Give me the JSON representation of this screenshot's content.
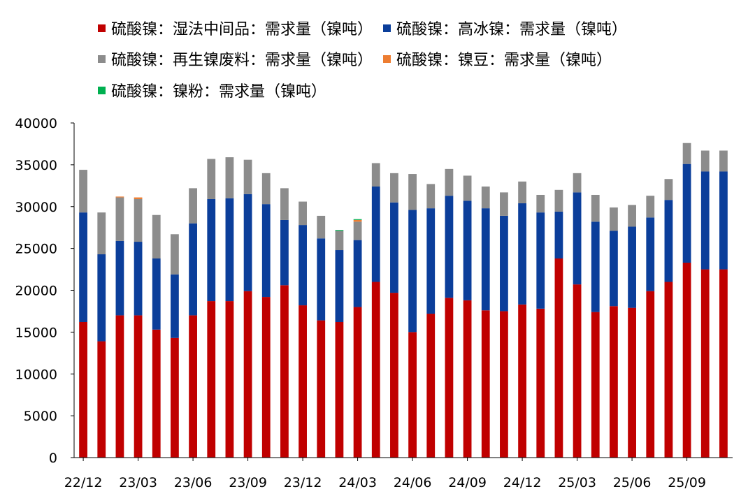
{
  "chart_data": {
    "type": "bar",
    "stacked": true,
    "categories": [
      "22/12",
      "23/01",
      "23/02",
      "23/03",
      "23/04",
      "23/05",
      "23/06",
      "23/07",
      "23/08",
      "23/09",
      "23/10",
      "23/11",
      "23/12",
      "24/01",
      "24/02",
      "24/03",
      "24/04",
      "24/05",
      "24/06",
      "24/07",
      "24/08",
      "24/09",
      "24/10",
      "24/11",
      "24/12",
      "25/01",
      "25/02",
      "25/03",
      "25/04",
      "25/05",
      "25/06",
      "25/07",
      "25/08",
      "25/09",
      "25/10",
      "25/11"
    ],
    "xtick_labels": [
      "22/12",
      "23/03",
      "23/06",
      "23/09",
      "23/12",
      "24/03",
      "24/06",
      "24/09",
      "24/12",
      "25/03",
      "25/06",
      "25/09"
    ],
    "xtick_step": 3,
    "ylim": [
      0,
      40000
    ],
    "yticks": [
      0,
      5000,
      10000,
      15000,
      20000,
      25000,
      30000,
      35000,
      40000
    ],
    "legend_position": "top",
    "grid": false,
    "series": [
      {
        "name": "硫酸镍：湿法中间品：需求量（镍吨）",
        "color": "#C00000",
        "values": [
          16200,
          13900,
          17000,
          17000,
          15300,
          14300,
          17000,
          18700,
          18700,
          19900,
          19200,
          20600,
          18200,
          16400,
          16200,
          18000,
          21000,
          19700,
          15000,
          17200,
          19100,
          18800,
          17600,
          17500,
          18300,
          17800,
          23800,
          20700,
          17400,
          18100,
          17900,
          19900,
          21000,
          23300,
          22500,
          22500
        ]
      },
      {
        "name": "硫酸镍：高冰镍：需求量（镍吨）",
        "color": "#0B3E9A",
        "values": [
          13100,
          10400,
          8900,
          8800,
          8500,
          7600,
          11000,
          12200,
          12300,
          11600,
          11100,
          7800,
          9600,
          9800,
          8600,
          8000,
          11400,
          10800,
          14600,
          12600,
          12200,
          11900,
          12200,
          11400,
          12100,
          11500,
          5600,
          11000,
          10800,
          9000,
          9700,
          8800,
          9800,
          11800,
          11700,
          11700
        ]
      },
      {
        "name": "硫酸镍：再生镍废料：需求量（镍吨）",
        "color": "#8C8C8C",
        "values": [
          5100,
          5000,
          5200,
          5100,
          5200,
          4800,
          4200,
          4800,
          4900,
          4100,
          3700,
          3800,
          2800,
          2700,
          2300,
          2200,
          2800,
          3500,
          4300,
          2900,
          3200,
          3000,
          2600,
          2800,
          2600,
          2100,
          2600,
          2300,
          3200,
          2800,
          2600,
          2600,
          2500,
          2500,
          2500,
          2500
        ]
      },
      {
        "name": "硫酸镍：镍豆：需求量（镍吨）",
        "color": "#ED7D31",
        "values": [
          0,
          0,
          100,
          200,
          0,
          0,
          0,
          0,
          0,
          0,
          0,
          0,
          0,
          0,
          0,
          200,
          0,
          0,
          0,
          0,
          0,
          0,
          0,
          0,
          0,
          0,
          0,
          0,
          0,
          0,
          0,
          0,
          0,
          0,
          0,
          0
        ]
      },
      {
        "name": "硫酸镍：镍粉：需求量（镍吨）",
        "color": "#00B050",
        "values": [
          0,
          0,
          0,
          0,
          0,
          0,
          0,
          0,
          0,
          0,
          0,
          0,
          0,
          0,
          100,
          100,
          0,
          0,
          0,
          0,
          0,
          0,
          0,
          0,
          0,
          0,
          0,
          0,
          0,
          0,
          0,
          0,
          0,
          0,
          0,
          0
        ]
      }
    ]
  }
}
